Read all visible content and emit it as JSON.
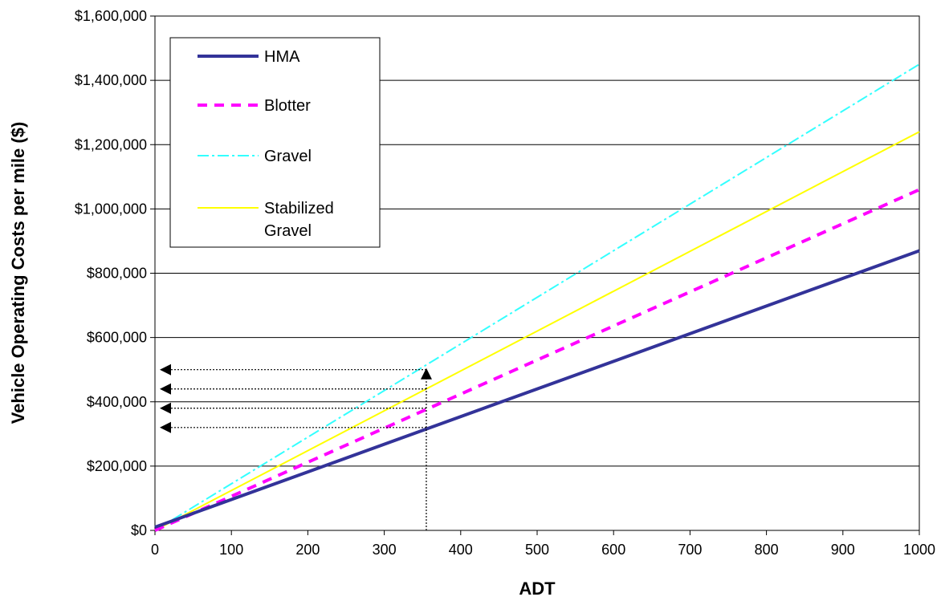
{
  "chart_data": {
    "type": "line",
    "xlabel": "ADT",
    "ylabel": "Vehicle Operating Costs per mile ($)",
    "xlim": [
      0,
      1000
    ],
    "ylim": [
      0,
      1600000
    ],
    "x_ticks": [
      "0",
      "100",
      "200",
      "300",
      "400",
      "500",
      "600",
      "700",
      "800",
      "900",
      "1000"
    ],
    "y_ticks": [
      "$0",
      "$200,000",
      "$400,000",
      "$600,000",
      "$800,000",
      "$1,000,000",
      "$1,200,000",
      "$1,400,000",
      "$1,600,000"
    ],
    "grid": "horizontal",
    "legend_position": "top-left",
    "series": [
      {
        "name": "HMA",
        "label_lines": [
          "HMA"
        ],
        "color": "#333399",
        "style": "solid-thick",
        "x": [
          0,
          1000
        ],
        "y": [
          10000,
          870000
        ]
      },
      {
        "name": "Blotter",
        "label_lines": [
          "Blotter"
        ],
        "color": "#ff00ff",
        "style": "dashed",
        "x": [
          0,
          1000
        ],
        "y": [
          0,
          1060000
        ]
      },
      {
        "name": "Gravel",
        "label_lines": [
          "Gravel"
        ],
        "color": "#33ffff",
        "style": "dash-dot",
        "x": [
          0,
          1000
        ],
        "y": [
          0,
          1450000
        ]
      },
      {
        "name": "Stabilized Gravel",
        "label_lines": [
          "Stabilized",
          "Gravel"
        ],
        "color": "#ffff00",
        "style": "solid-thin",
        "x": [
          0,
          1000
        ],
        "y": [
          0,
          1240000
        ]
      }
    ],
    "annotations": {
      "vertical_reference_x": 355,
      "horizontal_reference_y": [
        500000,
        440000,
        380000,
        320000
      ],
      "arrow_target_x": 0
    }
  }
}
